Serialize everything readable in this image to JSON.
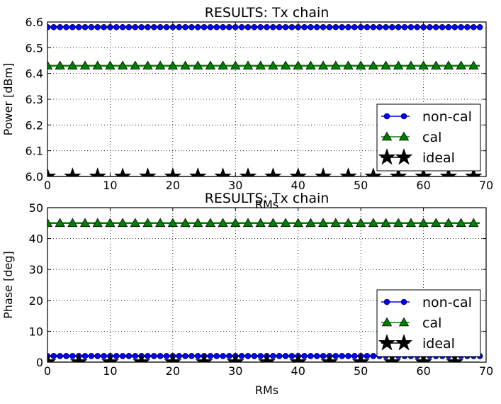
{
  "chart_data": [
    {
      "type": "line",
      "title": "RESULTS: Tx chain",
      "xlabel": "RMs",
      "ylabel": "Power [dBm]",
      "xlim": [
        0,
        70
      ],
      "ylim": [
        6.0,
        6.6
      ],
      "xticks": [
        0,
        10,
        20,
        30,
        40,
        50,
        60,
        70
      ],
      "yticks": [
        6.0,
        6.1,
        6.2,
        6.3,
        6.4,
        6.5,
        6.6
      ],
      "ytick_labels": [
        "6.0",
        "6.1",
        "6.2",
        "6.3",
        "6.4",
        "6.5",
        "6.6"
      ],
      "grid": true,
      "legend_position": "lower-right",
      "series": [
        {
          "name": "non-cal",
          "color": "#0000ff",
          "marker": "circle",
          "marker_every": 1,
          "x_range": [
            0,
            69
          ],
          "value": 6.58
        },
        {
          "name": "cal",
          "color": "#008000",
          "marker": "triangle",
          "marker_every": 2,
          "x_range": [
            0,
            69
          ],
          "value": 6.43
        },
        {
          "name": "ideal",
          "color": "#000000",
          "marker": "star",
          "marker_every": 4,
          "x_range": [
            0,
            69
          ],
          "value": 6.0
        }
      ]
    },
    {
      "type": "line",
      "title": "RESULTS: Tx chain",
      "xlabel": "RMs",
      "ylabel": "Phase [deg]",
      "xlim": [
        0,
        70
      ],
      "ylim": [
        0,
        50
      ],
      "xticks": [
        0,
        10,
        20,
        30,
        40,
        50,
        60,
        70
      ],
      "yticks": [
        0,
        10,
        20,
        30,
        40,
        50
      ],
      "ytick_labels": [
        "0",
        "10",
        "20",
        "30",
        "40",
        "50"
      ],
      "grid": true,
      "legend_position": "lower-right",
      "series": [
        {
          "name": "non-cal",
          "color": "#0000ff",
          "marker": "circle",
          "marker_every": 1,
          "x_range": [
            0,
            69
          ],
          "value": 2
        },
        {
          "name": "cal",
          "color": "#008000",
          "marker": "triangle",
          "marker_every": 2,
          "x_range": [
            0,
            69
          ],
          "value": 45
        },
        {
          "name": "ideal",
          "color": "#000000",
          "marker": "star",
          "marker_every": 5,
          "x_range": [
            0,
            69
          ],
          "value": 0
        }
      ]
    }
  ]
}
